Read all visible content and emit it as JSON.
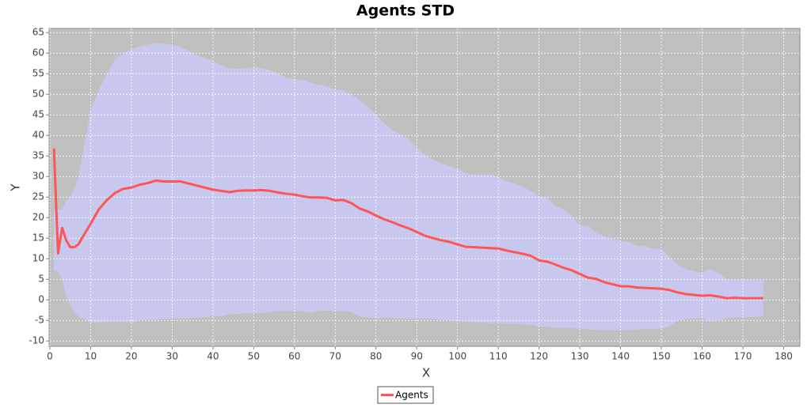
{
  "chart_data": {
    "type": "line",
    "title": "Agents STD",
    "x_label": "X",
    "y_label": "Y",
    "x": [
      1,
      2,
      3,
      4,
      5,
      6,
      7,
      8,
      10,
      12,
      14,
      16,
      18,
      20,
      22,
      24,
      26,
      28,
      30,
      32,
      34,
      36,
      38,
      40,
      42,
      44,
      46,
      48,
      50,
      52,
      54,
      56,
      58,
      60,
      62,
      64,
      66,
      68,
      70,
      72,
      74,
      76,
      78,
      80,
      82,
      84,
      86,
      88,
      90,
      92,
      94,
      96,
      98,
      100,
      102,
      104,
      106,
      108,
      110,
      112,
      114,
      116,
      118,
      120,
      122,
      124,
      126,
      128,
      130,
      132,
      134,
      136,
      138,
      140,
      142,
      144,
      146,
      148,
      150,
      152,
      154,
      156,
      158,
      160,
      162,
      164,
      166,
      168,
      170,
      172,
      175
    ],
    "series": [
      {
        "name": "Agents",
        "color": "#ff5555",
        "band_color": "#c8c8ee",
        "values": [
          36.8,
          11.3,
          17.5,
          14.5,
          12.8,
          12.8,
          13.5,
          15.2,
          18.5,
          22,
          24.3,
          26,
          27,
          27.3,
          28,
          28.4,
          29,
          28.8,
          28.8,
          28.8,
          28.3,
          27.8,
          27.3,
          26.8,
          26.5,
          26.2,
          26.5,
          26.6,
          26.6,
          26.7,
          26.5,
          26.1,
          25.8,
          25.6,
          25.2,
          24.9,
          24.9,
          24.8,
          24.2,
          24.3,
          23.5,
          22.2,
          21.5,
          20.5,
          19.6,
          18.9,
          18.1,
          17.4,
          16.5,
          15.6,
          15,
          14.5,
          14.1,
          13.5,
          12.9,
          12.8,
          12.7,
          12.6,
          12.5,
          12,
          11.6,
          11.2,
          10.7,
          9.6,
          9.3,
          8.6,
          7.8,
          7.2,
          6.3,
          5.4,
          5.1,
          4.3,
          3.8,
          3.3,
          3.3,
          3,
          2.9,
          2.8,
          2.7,
          2.4,
          1.8,
          1.4,
          1.2,
          1,
          1.1,
          0.8,
          0.4,
          0.5,
          0.4,
          0.4,
          0.4
        ],
        "band_upper": [
          22,
          22,
          22,
          24,
          25,
          27,
          30,
          35,
          46,
          51,
          55,
          58.5,
          60,
          61,
          61.5,
          62,
          62.5,
          62.2,
          62,
          61.5,
          60.5,
          59.5,
          58.8,
          58.2,
          57,
          56.3,
          56.2,
          56.3,
          56.5,
          56.3,
          55.8,
          55,
          54,
          53.8,
          53.5,
          52.8,
          52.3,
          52,
          51,
          51,
          50,
          48.5,
          47,
          45,
          43,
          41.2,
          40.3,
          39,
          37,
          35.3,
          34,
          33.2,
          32.6,
          31.8,
          30.8,
          30.5,
          30.5,
          30.5,
          30,
          28.8,
          28.3,
          27.5,
          26.5,
          25.2,
          24.8,
          22.8,
          22,
          20.5,
          18,
          18,
          16.3,
          15.5,
          14.8,
          14.3,
          14,
          13.2,
          13,
          12.5,
          12.3,
          10.5,
          8.5,
          7.5,
          7,
          6.5,
          7.5,
          6.5,
          5,
          5,
          5,
          4.8,
          4.8
        ],
        "band_lower": [
          7,
          7,
          5,
          1,
          -1.5,
          -3,
          -4,
          -4.5,
          -5.5,
          -5.5,
          -5.3,
          -5.3,
          -5.3,
          -5.5,
          -5,
          -4.8,
          -4.7,
          -4.6,
          -4.6,
          -4.5,
          -4.4,
          -4.3,
          -4.3,
          -4,
          -4,
          -3.5,
          -3.4,
          -3.3,
          -3.2,
          -3.2,
          -3,
          -2.8,
          -2.6,
          -2.8,
          -2.8,
          -3.2,
          -2.7,
          -2.6,
          -2.8,
          -2.7,
          -3,
          -4,
          -4.3,
          -4.4,
          -4.3,
          -4.3,
          -4.5,
          -4.6,
          -4.6,
          -4.5,
          -4.6,
          -4.8,
          -5,
          -5.2,
          -5.3,
          -5.4,
          -5.5,
          -5.7,
          -5.5,
          -5.8,
          -5.8,
          -6,
          -6,
          -6.5,
          -6.5,
          -6.7,
          -6.7,
          -6.8,
          -7,
          -7.2,
          -7.3,
          -7.3,
          -7.4,
          -7.4,
          -7.3,
          -7.2,
          -7,
          -7,
          -7,
          -6.5,
          -5,
          -4.7,
          -4.5,
          -4.5,
          -5.3,
          -5,
          -4.3,
          -4.3,
          -4.2,
          -4.2,
          -4
        ]
      }
    ],
    "xlim": [
      0,
      184
    ],
    "ylim": [
      -11.3,
      66
    ],
    "xticks": [
      0,
      10,
      20,
      30,
      40,
      50,
      60,
      70,
      80,
      90,
      100,
      110,
      120,
      130,
      140,
      150,
      160,
      170,
      180
    ],
    "yticks": [
      -10,
      -5,
      0,
      5,
      10,
      15,
      20,
      25,
      30,
      35,
      40,
      45,
      50,
      55,
      60,
      65
    ],
    "grid": true,
    "plot_background": "#c0c0c0",
    "legend_position": "bottom"
  }
}
